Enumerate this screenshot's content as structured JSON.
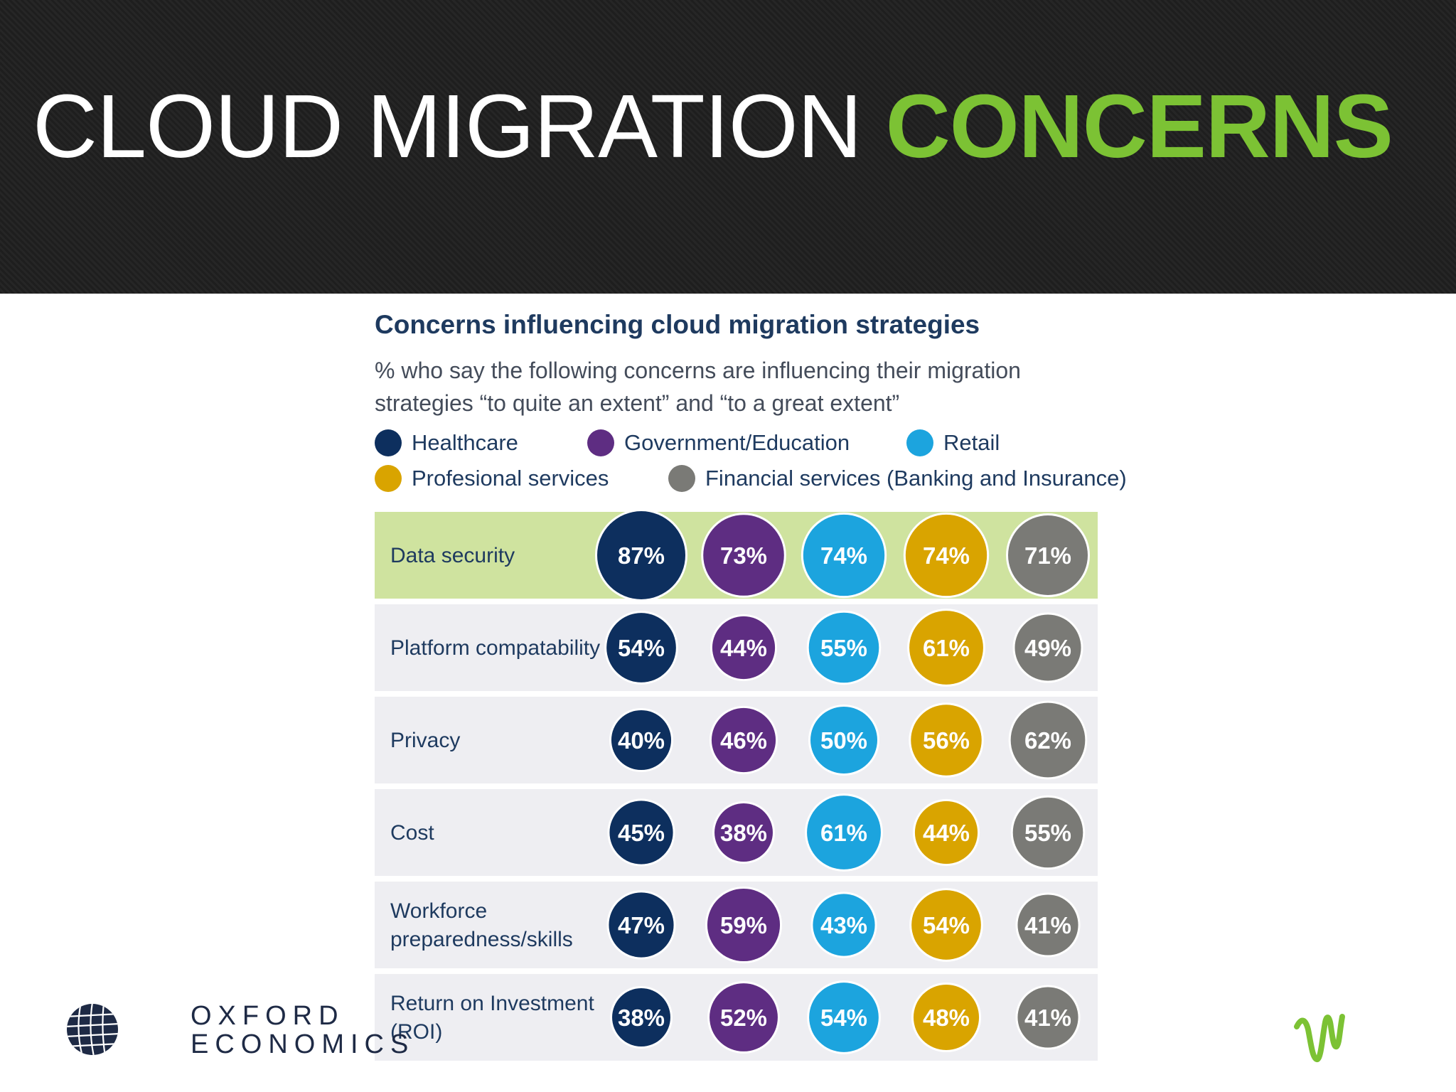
{
  "slide": {
    "title_main": "CLOUD MIGRATION",
    "title_accent": "CONCERNS",
    "title_accent_color": "#7cc234"
  },
  "logos": {
    "oxford_line1": "OXFORD",
    "oxford_line2": "ECONOMICS",
    "right_logo_icon": "wave-logo-icon",
    "right_logo_color": "#7cc234"
  },
  "chart_data": {
    "type": "table",
    "title": "Concerns influencing cloud migration strategies",
    "subtitle": "% who say the following concerns are influencing their migration strategies “to quite an extent” and “to a great extent”",
    "legend": [
      {
        "label": "Healthcare",
        "color": "#0d2f5e"
      },
      {
        "label": "Government/Education",
        "color": "#5e2d82"
      },
      {
        "label": "Retail",
        "color": "#1ca4de"
      },
      {
        "label": "Profesional services",
        "color": "#d9a400"
      },
      {
        "label": "Financial services (Banking and Insurance)",
        "color": "#7a7a76"
      }
    ],
    "highlight_color": "#cfe39f",
    "row_color": "#eeeef2",
    "rows": [
      {
        "label": "Data security",
        "values": [
          "87%",
          "73%",
          "74%",
          "74%",
          "71%"
        ],
        "numbers": [
          87,
          73,
          74,
          74,
          71
        ],
        "highlight": true
      },
      {
        "label": "Platform compatability",
        "values": [
          "54%",
          "44%",
          "55%",
          "61%",
          "49%"
        ],
        "numbers": [
          54,
          44,
          55,
          61,
          49
        ]
      },
      {
        "label": "Privacy",
        "values": [
          "40%",
          "46%",
          "50%",
          "56%",
          "62%"
        ],
        "numbers": [
          40,
          46,
          50,
          56,
          62
        ]
      },
      {
        "label": "Cost",
        "values": [
          "45%",
          "38%",
          "61%",
          "44%",
          "55%"
        ],
        "numbers": [
          45,
          38,
          61,
          44,
          55
        ]
      },
      {
        "label": "Workforce preparedness/skills",
        "label_lines": [
          "Workforce",
          "preparedness/skills"
        ],
        "values": [
          "47%",
          "59%",
          "43%",
          "54%",
          "41%"
        ],
        "numbers": [
          47,
          59,
          43,
          54,
          41
        ]
      },
      {
        "label": "Return on Investment (ROI)",
        "label_lines": [
          "Return on Investment",
          "(ROI)"
        ],
        "values": [
          "38%",
          "52%",
          "54%",
          "48%",
          "41%"
        ],
        "numbers": [
          38,
          52,
          54,
          48,
          41
        ]
      }
    ]
  }
}
